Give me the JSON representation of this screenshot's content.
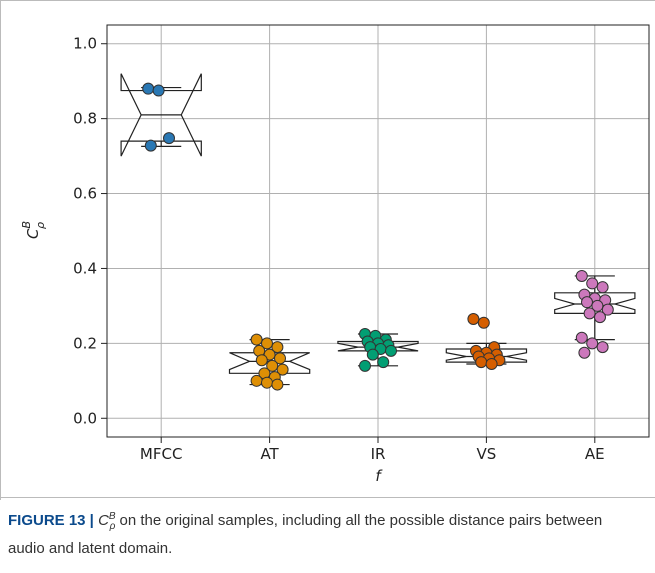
{
  "chart_data": {
    "type": "boxplot",
    "ylabel": {
      "base": "C",
      "sup": "B",
      "sub": "ρ"
    },
    "xlabel": "f",
    "categories": [
      "MFCC",
      "AT",
      "IR",
      "VS",
      "AE"
    ],
    "series": [
      {
        "color": "#2a78b4",
        "box": {
          "whisker_low": 0.726,
          "q1": 0.74,
          "notch_low": 0.7,
          "median": 0.81,
          "notch_high": 0.92,
          "q3": 0.875,
          "whisker_high": 0.883
        },
        "points": [
          0.88,
          0.875,
          0.748,
          0.728
        ]
      },
      {
        "color": "#de8f05",
        "box": {
          "whisker_low": 0.09,
          "q1": 0.12,
          "notch_low": 0.13,
          "median": 0.152,
          "notch_high": 0.175,
          "q3": 0.175,
          "whisker_high": 0.21
        },
        "points": [
          0.21,
          0.2,
          0.19,
          0.18,
          0.17,
          0.16,
          0.155,
          0.14,
          0.13,
          0.12,
          0.11,
          0.1,
          0.095,
          0.09
        ]
      },
      {
        "color": "#029e73",
        "box": {
          "whisker_low": 0.14,
          "q1": 0.18,
          "notch_low": 0.18,
          "median": 0.19,
          "notch_high": 0.2,
          "q3": 0.205,
          "whisker_high": 0.225
        },
        "points": [
          0.225,
          0.22,
          0.21,
          0.205,
          0.2,
          0.195,
          0.19,
          0.185,
          0.18,
          0.17,
          0.15,
          0.14
        ]
      },
      {
        "color": "#d55e00",
        "box": {
          "whisker_low": 0.145,
          "q1": 0.15,
          "notch_low": 0.155,
          "median": 0.165,
          "notch_high": 0.175,
          "q3": 0.185,
          "whisker_high": 0.2
        },
        "points": [
          0.265,
          0.255,
          0.19,
          0.18,
          0.175,
          0.17,
          0.165,
          0.16,
          0.155,
          0.15,
          0.145
        ]
      },
      {
        "color": "#cc78bc",
        "box": {
          "whisker_low": 0.21,
          "q1": 0.28,
          "notch_low": 0.29,
          "median": 0.305,
          "notch_high": 0.32,
          "q3": 0.335,
          "whisker_high": 0.38
        },
        "points": [
          0.38,
          0.36,
          0.35,
          0.33,
          0.32,
          0.315,
          0.31,
          0.3,
          0.29,
          0.28,
          0.27,
          0.215,
          0.2,
          0.19,
          0.175
        ]
      }
    ],
    "ylim": [
      -0.05,
      1.05
    ],
    "yticks": [
      {
        "value": 0,
        "label": "0.0"
      },
      0.2,
      0.4,
      0.6,
      0.8,
      {
        "value": 1,
        "label": "1.0"
      }
    ],
    "grid": true
  },
  "caption": {
    "label": "FIGURE 13 |",
    "text": "on the original samples, including all the possible distance pairs between audio and latent domain."
  }
}
